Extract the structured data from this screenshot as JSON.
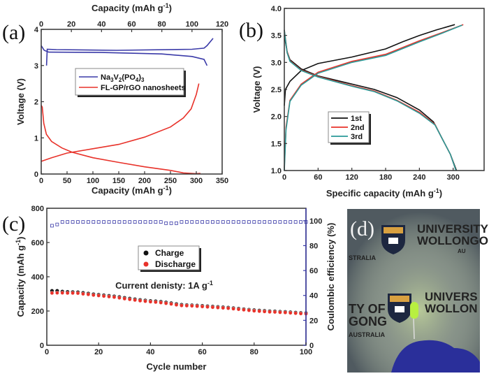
{
  "chart_data": [
    {
      "panel_label": "(a)",
      "type": "line",
      "xlabel": "Capacity (mAh g-1)",
      "x2label": "Capacity (mAh g-1)",
      "ylabel": "Voltage (V)",
      "xlim": [
        0,
        350
      ],
      "x2lim": [
        0,
        120
      ],
      "ylim": [
        0,
        4
      ],
      "xticks": [
        0,
        50,
        100,
        150,
        200,
        250,
        300,
        350
      ],
      "x2ticks": [
        0,
        20,
        40,
        60,
        80,
        100,
        120
      ],
      "yticks": [
        0,
        1,
        2,
        3,
        4
      ],
      "legend": "center",
      "series": [
        {
          "name": "Na3V2(PO4)3",
          "color": "#3a3aa8",
          "axis": "top",
          "segments": [
            [
              [
                3.5,
                3.0
              ],
              [
                4,
                3.45
              ],
              [
                10,
                3.44
              ],
              [
                50,
                3.42
              ],
              [
                100,
                3.45
              ],
              [
                108,
                3.48
              ],
              [
                110,
                3.55
              ],
              [
                114,
                3.75
              ]
            ],
            [
              [
                0,
                3.55
              ],
              [
                2,
                3.42
              ],
              [
                5,
                3.37
              ],
              [
                40,
                3.36
              ],
              [
                80,
                3.32
              ],
              [
                100,
                3.25
              ],
              [
                108,
                3.17
              ],
              [
                110,
                3.0
              ]
            ]
          ]
        },
        {
          "name": "FL-GP/rGO nanosheets",
          "color": "#e8322a",
          "axis": "bottom",
          "segments": [
            [
              [
                0,
                1.9
              ],
              [
                2,
                1.85
              ],
              [
                5,
                1.4
              ],
              [
                10,
                1.1
              ],
              [
                20,
                0.9
              ],
              [
                40,
                0.72
              ],
              [
                60,
                0.6
              ],
              [
                100,
                0.45
              ],
              [
                150,
                0.32
              ],
              [
                200,
                0.2
              ],
              [
                250,
                0.1
              ],
              [
                275,
                0.03
              ],
              [
                300,
                0.01
              ],
              [
                308,
                0.02
              ]
            ],
            [
              [
                0,
                0.35
              ],
              [
                20,
                0.45
              ],
              [
                50,
                0.58
              ],
              [
                100,
                0.7
              ],
              [
                150,
                0.82
              ],
              [
                200,
                1.02
              ],
              [
                250,
                1.3
              ],
              [
                275,
                1.55
              ],
              [
                290,
                1.8
              ],
              [
                300,
                2.2
              ],
              [
                305,
                2.5
              ]
            ]
          ]
        }
      ]
    },
    {
      "panel_label": "(b)",
      "type": "line",
      "xlabel": "Specific capacity (mAh g-1)",
      "ylabel": "Voltage (V)",
      "xlim": [
        0,
        355
      ],
      "ylim": [
        1.0,
        4.0
      ],
      "xticks": [
        0,
        60,
        120,
        180,
        240,
        300
      ],
      "yticks": [
        "1.0",
        "1.5",
        "2.0",
        "2.5",
        "3.0",
        "3.5",
        "4.0"
      ],
      "legend": "center",
      "series": [
        {
          "name": "1st",
          "color": "#111111",
          "segments": [
            [
              [
                0,
                2.2
              ],
              [
                2,
                2.5
              ],
              [
                10,
                2.65
              ],
              [
                30,
                2.85
              ],
              [
                60,
                2.98
              ],
              [
                120,
                3.1
              ],
              [
                180,
                3.25
              ],
              [
                210,
                3.38
              ],
              [
                240,
                3.5
              ],
              [
                270,
                3.6
              ],
              [
                303,
                3.7
              ]
            ],
            [
              [
                0,
                3.5
              ],
              [
                5,
                3.2
              ],
              [
                10,
                3.05
              ],
              [
                30,
                2.88
              ],
              [
                60,
                2.75
              ],
              [
                120,
                2.6
              ],
              [
                160,
                2.5
              ],
              [
                200,
                2.35
              ],
              [
                240,
                2.12
              ],
              [
                265,
                1.9
              ],
              [
                280,
                1.6
              ],
              [
                295,
                1.3
              ],
              [
                306,
                1.0
              ]
            ]
          ]
        },
        {
          "name": "2nd",
          "color": "#e8322a",
          "segments": [
            [
              [
                0,
                1.05
              ],
              [
                3,
                1.8
              ],
              [
                10,
                2.3
              ],
              [
                30,
                2.6
              ],
              [
                60,
                2.82
              ],
              [
                120,
                3.02
              ],
              [
                180,
                3.15
              ],
              [
                240,
                3.4
              ],
              [
                280,
                3.55
              ],
              [
                318,
                3.7
              ]
            ],
            [
              [
                0,
                3.6
              ],
              [
                5,
                3.2
              ],
              [
                10,
                3.03
              ],
              [
                30,
                2.86
              ],
              [
                60,
                2.74
              ],
              [
                120,
                2.57
              ],
              [
                160,
                2.47
              ],
              [
                200,
                2.3
              ],
              [
                240,
                2.08
              ],
              [
                268,
                1.85
              ],
              [
                280,
                1.6
              ],
              [
                295,
                1.3
              ],
              [
                305,
                1.0
              ]
            ]
          ]
        },
        {
          "name": "3rd",
          "color": "#2a9a98",
          "segments": [
            [
              [
                0,
                1.0
              ],
              [
                3,
                1.75
              ],
              [
                10,
                2.28
              ],
              [
                30,
                2.58
              ],
              [
                60,
                2.8
              ],
              [
                120,
                3.0
              ],
              [
                180,
                3.13
              ],
              [
                240,
                3.38
              ],
              [
                280,
                3.54
              ],
              [
                316,
                3.69
              ]
            ],
            [
              [
                0,
                3.6
              ],
              [
                5,
                3.18
              ],
              [
                10,
                3.02
              ],
              [
                30,
                2.85
              ],
              [
                60,
                2.73
              ],
              [
                120,
                2.56
              ],
              [
                160,
                2.46
              ],
              [
                200,
                2.29
              ],
              [
                240,
                2.06
              ],
              [
                268,
                1.84
              ],
              [
                280,
                1.6
              ],
              [
                295,
                1.3
              ],
              [
                305,
                1.0
              ]
            ]
          ]
        }
      ]
    },
    {
      "panel_label": "(c)",
      "type": "scatter",
      "xlabel": "Cycle number",
      "ylabel": "Capacity (mAh g-1)",
      "y2label": "Coulombic efficiency (%)",
      "xlim": [
        0,
        100
      ],
      "ylim": [
        0,
        800
      ],
      "y2lim": [
        0,
        110
      ],
      "xticks": [
        0,
        20,
        40,
        60,
        80,
        100
      ],
      "yticks": [
        0,
        200,
        400,
        600,
        800
      ],
      "y2ticks": [
        0,
        20,
        40,
        60,
        80,
        100
      ],
      "annotation": "Current denisty: 1A g-1",
      "legend": "center",
      "cycles": [
        2,
        4,
        6,
        8,
        10,
        12,
        14,
        16,
        18,
        20,
        22,
        24,
        26,
        28,
        30,
        32,
        34,
        36,
        38,
        40,
        42,
        44,
        46,
        48,
        50,
        52,
        54,
        56,
        58,
        60,
        62,
        64,
        66,
        68,
        70,
        72,
        74,
        76,
        78,
        80,
        82,
        84,
        86,
        88,
        90,
        92,
        94,
        96,
        98,
        100
      ],
      "series": [
        {
          "name": "Charge",
          "color": "#111111",
          "axis": "left",
          "values": [
            318,
            318,
            314,
            312,
            311,
            310,
            306,
            302,
            298,
            295,
            292,
            289,
            286,
            282,
            277,
            273,
            269,
            265,
            262,
            259,
            257,
            254,
            250,
            246,
            241,
            237,
            235,
            234,
            232,
            230,
            228,
            226,
            224,
            222,
            220,
            217,
            214,
            211,
            208,
            205,
            203,
            201,
            199,
            198,
            196,
            195,
            193,
            191,
            189,
            188
          ]
        },
        {
          "name": "Discharge",
          "color": "#e8322a",
          "axis": "left",
          "values": [
            305,
            306,
            306,
            305,
            305,
            304,
            300,
            297,
            293,
            290,
            287,
            284,
            281,
            277,
            272,
            268,
            264,
            260,
            257,
            254,
            252,
            249,
            245,
            241,
            236,
            232,
            231,
            230,
            228,
            226,
            224,
            222,
            220,
            218,
            216,
            213,
            210,
            207,
            204,
            201,
            199,
            197,
            195,
            194,
            192,
            191,
            189,
            187,
            185,
            184
          ]
        },
        {
          "axis": "right",
          "color": "#3a3aa8",
          "values": [
            96,
            97,
            99,
            99,
            99,
            99,
            99,
            99,
            99,
            99,
            99,
            99,
            99,
            99,
            99,
            99,
            99,
            99,
            99,
            99,
            99,
            99,
            98,
            98,
            98,
            99,
            99,
            99,
            99,
            99,
            99,
            99,
            99,
            99,
            99,
            99,
            99,
            99,
            99,
            99,
            99,
            99,
            99,
            99,
            99,
            99,
            99,
            99,
            99,
            99
          ]
        }
      ]
    }
  ],
  "photo": {
    "panel_label": "(d)",
    "logo_text": [
      "UNIVERSITY",
      "WOLLONGONG",
      "AUSTRALIA",
      "TY OF",
      "GONG",
      "STRALIA",
      "UNIVERS",
      "WOLLON"
    ],
    "led_color": "#b8f040",
    "glove_color": "#2a2f9a"
  }
}
